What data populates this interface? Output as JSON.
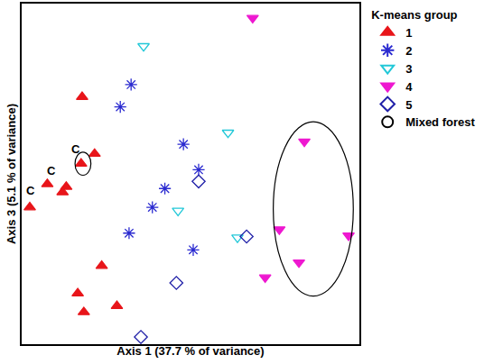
{
  "chart_data": {
    "type": "scatter",
    "x_label": "Axis 1 (37.7 % of variance)",
    "y_label": "Axis 3 (5.1 % of variance)",
    "legend_title": "K-means group",
    "legend": "upper right",
    "grid": false,
    "tick_labels": false,
    "xlim": [
      0,
      100
    ],
    "ylim": [
      0,
      100
    ],
    "xticks": [],
    "yticks": [],
    "series": [
      {
        "name": "1",
        "color": "#e8151a",
        "marker": "triangle-up",
        "x": [
          17.9,
          21.6,
          17.6,
          13.2,
          12.1,
          7.6,
          2.4,
          23.7,
          16.6,
          28.2,
          18.4
        ],
        "values": [
          72.6,
          55.9,
          53.0,
          46.2,
          44.6,
          47.0,
          40.2,
          23.0,
          14.9,
          11.2,
          9.4
        ]
      },
      {
        "name": "2",
        "color": "#2a2ad0",
        "marker": "asterisk-open",
        "x": [
          32.4,
          29.2,
          47.9,
          52.4,
          42.4,
          38.7,
          31.8,
          50.8
        ],
        "values": [
          76.2,
          69.7,
          58.7,
          51.2,
          45.7,
          40.2,
          32.6,
          27.7
        ]
      },
      {
        "name": "3",
        "color": "#22c8d8",
        "marker": "triangle-down-open",
        "x": [
          36.1,
          61.1,
          46.3,
          63.9
        ],
        "values": [
          87.5,
          62.1,
          39.2,
          31.3
        ]
      },
      {
        "name": "4",
        "color": "#ee18d0",
        "marker": "triangle-down",
        "x": [
          68.4,
          83.7,
          76.3,
          96.8,
          82.1,
          72.1
        ],
        "values": [
          95.8,
          59.5,
          33.7,
          31.9,
          24.0,
          19.6
        ]
      },
      {
        "name": "5",
        "color": "#2020a8",
        "marker": "diamond-open",
        "x": [
          52.4,
          66.6,
          45.8,
          35.3
        ],
        "values": [
          47.8,
          31.6,
          18.0,
          2.1
        ]
      }
    ],
    "annotations": [
      {
        "text": "C",
        "x": 16.1,
        "y": 57.2
      },
      {
        "text": "C",
        "x": 8.7,
        "y": 50.9
      },
      {
        "text": "C",
        "x": 2.6,
        "y": 45.2
      }
    ],
    "regions": {
      "name": "Mixed forest",
      "color": "#000000",
      "marker": "circle-open",
      "ellipses": [
        {
          "x0": 74.5,
          "x1": 98.2,
          "y0": 14.1,
          "y1": 65.3
        },
        {
          "x0": 15.8,
          "x1": 20.5,
          "y0": 49.6,
          "y1": 56.4
        }
      ]
    }
  }
}
